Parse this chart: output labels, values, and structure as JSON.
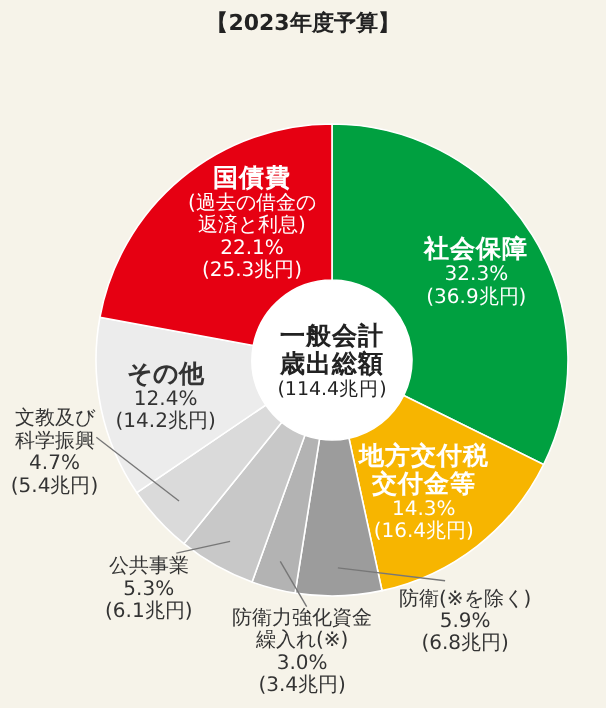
{
  "chart_data": {
    "type": "donut",
    "title": "【2023年度予算】",
    "categories": [
      "社会保障",
      "地方交付税交付金等",
      "防衛(※を除く)",
      "防衛力強化資金繰入れ(※)",
      "公共事業",
      "文教及び科学振興",
      "その他",
      "国債費(過去の借金の返済と利息)"
    ],
    "values": [
      32.3,
      14.3,
      5.9,
      3.0,
      5.3,
      4.7,
      12.4,
      22.1
    ],
    "value_labels": [
      "32.3%\n(36.9兆円)",
      "14.3%\n(16.4兆円)",
      "5.9%\n(6.8兆円)",
      "3.0%\n(3.4兆円)",
      "5.3%\n(6.1兆円)",
      "4.7%\n(5.4兆円)",
      "12.4%\n(14.2兆円)",
      "22.1%\n(25.3兆円)"
    ],
    "colors": [
      "#00a040",
      "#f7b500",
      "#9c9c9c",
      "#b3b3b3",
      "#c8c8c8",
      "#dadada",
      "#ececec",
      "#e60012"
    ],
    "annotations": [
      "一般会計歳出総額(114.4兆円)"
    ]
  }
}
